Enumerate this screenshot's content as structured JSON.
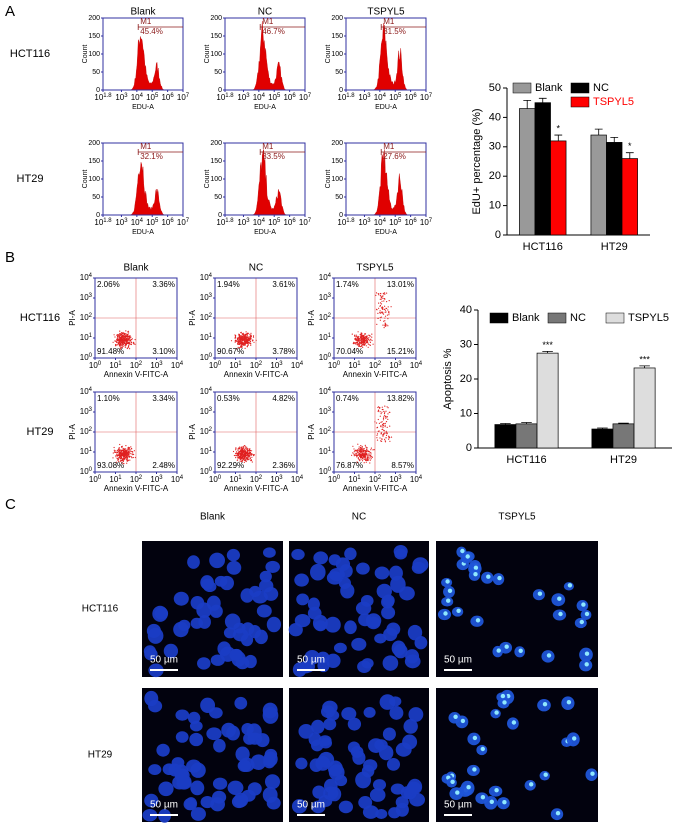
{
  "panel_labels": [
    "A",
    "B",
    "C"
  ],
  "flow_histograms": {
    "columns": [
      "Blank",
      "NC",
      "TSPYL5"
    ],
    "rows": [
      "HCT116",
      "HT29"
    ],
    "y_label": "Count",
    "x_label": "EDU-A",
    "ylim": [
      0,
      200
    ],
    "yticks": [
      0,
      50,
      100,
      150,
      200
    ],
    "x_base": "10",
    "xlim": [
      1.8,
      7
    ],
    "xticks": [
      1.8,
      3,
      4,
      5,
      6,
      7
    ],
    "gate": "M1",
    "gate_percent": [
      [
        "45.4%",
        "46.7%",
        "31.5%"
      ],
      [
        "32.1%",
        "33.5%",
        "27.6%"
      ]
    ]
  },
  "flow_scatter": {
    "columns": [
      "Blank",
      "NC",
      "TSPYL5"
    ],
    "rows": [
      "HCT116",
      "HT29"
    ],
    "y_label": "PI-A",
    "x_label": "Annexin V-FITC-A",
    "base": "10",
    "xlim": [
      0,
      4
    ],
    "ylim": [
      0,
      4
    ],
    "xticks": [
      0,
      1,
      2,
      3,
      4
    ],
    "yticks": [
      0,
      1,
      2,
      3,
      4
    ],
    "quadrants": [
      [
        [
          "2.06%",
          "3.36%",
          "91.48%",
          "3.10%"
        ],
        [
          "1.94%",
          "3.61%",
          "90.67%",
          "3.78%"
        ],
        [
          "1.74%",
          "13.01%",
          "70.04%",
          "15.21%"
        ]
      ],
      [
        [
          "1.10%",
          "3.34%",
          "93.08%",
          "2.48%"
        ],
        [
          "0.53%",
          "4.82%",
          "92.29%",
          "2.36%"
        ],
        [
          "0.74%",
          "13.82%",
          "76.87%",
          "8.57%"
        ]
      ]
    ]
  },
  "chart_data": [
    {
      "type": "bar",
      "y_label": "EdU+ percentage (%)",
      "categories": [
        "HCT116",
        "HT29"
      ],
      "ylim": [
        0,
        50
      ],
      "yticks": [
        0,
        10,
        20,
        30,
        40,
        50
      ],
      "legend": "top",
      "series": [
        {
          "name": "Blank",
          "color": "#999999",
          "values": [
            43,
            34
          ],
          "errors": [
            2.8,
            2
          ]
        },
        {
          "name": "NC",
          "color": "#000000",
          "values": [
            45,
            31.5
          ],
          "errors": [
            1.5,
            1.7
          ]
        },
        {
          "name": "TSPYL5",
          "color": "#ff0000",
          "values": [
            32,
            26
          ],
          "errors": [
            2,
            2
          ],
          "significance": [
            "*",
            "*"
          ]
        }
      ]
    },
    {
      "type": "bar",
      "y_label": "Apoptosis %",
      "categories": [
        "HCT116",
        "HT29"
      ],
      "ylim": [
        0,
        40
      ],
      "yticks": [
        0,
        10,
        20,
        30,
        40
      ],
      "legend": "top",
      "series": [
        {
          "name": "Blank",
          "color": "#000000",
          "values": [
            6.8,
            5.5
          ],
          "errors": [
            0.3,
            0.3
          ]
        },
        {
          "name": "NC",
          "color": "#777777",
          "values": [
            7,
            7
          ],
          "errors": [
            0.4,
            0.2
          ]
        },
        {
          "name": "TSPYL5",
          "color": "#dddddd",
          "values": [
            27.5,
            23.2
          ],
          "errors": [
            0.5,
            0.6
          ],
          "significance": [
            "***",
            "***"
          ]
        }
      ]
    }
  ],
  "microscopy": {
    "columns": [
      "Blank",
      "NC",
      "TSPYL5"
    ],
    "rows": [
      "HCT116",
      "HT29"
    ],
    "scale_bar": "50 µm"
  }
}
